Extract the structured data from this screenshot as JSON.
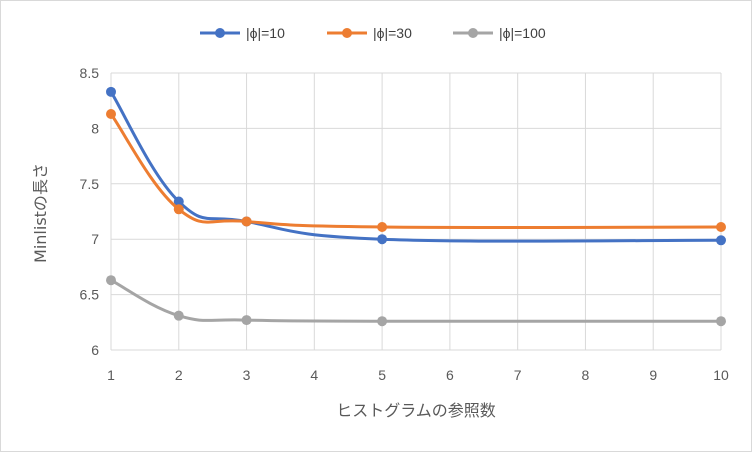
{
  "chart_data": {
    "type": "line",
    "x": [
      1,
      2,
      3,
      5,
      10
    ],
    "x_axis_ticks": [
      1,
      2,
      3,
      4,
      5,
      6,
      7,
      8,
      9,
      10
    ],
    "xlim": [
      1,
      10
    ],
    "y_axis_ticks": [
      "6",
      "6.5",
      "7",
      "7.5",
      "8",
      "8.5"
    ],
    "ylim": [
      6,
      8.5
    ],
    "xlabel": "ヒストグラムの参照数",
    "ylabel": "Minlistの長さ",
    "grid": "vertical and horizontal",
    "legend_position": "top",
    "smooth": true,
    "series": [
      {
        "name": "|ϕ|=10",
        "color": "#4472c4",
        "values": [
          8.33,
          7.34,
          7.16,
          7.0,
          6.99
        ]
      },
      {
        "name": "|ϕ|=30",
        "color": "#ed7d31",
        "values": [
          8.13,
          7.27,
          7.16,
          7.11,
          7.11
        ]
      },
      {
        "name": "|ϕ|=100",
        "color": "#a5a5a5",
        "values": [
          6.63,
          6.31,
          6.27,
          6.26,
          6.26
        ]
      }
    ]
  }
}
